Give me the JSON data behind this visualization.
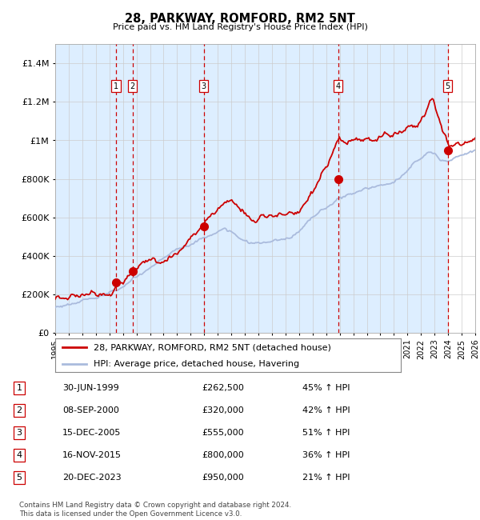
{
  "title": "28, PARKWAY, ROMFORD, RM2 5NT",
  "subtitle": "Price paid vs. HM Land Registry's House Price Index (HPI)",
  "ylim": [
    0,
    1500000
  ],
  "yticks": [
    0,
    200000,
    400000,
    600000,
    800000,
    1000000,
    1200000,
    1400000
  ],
  "ytick_labels": [
    "£0",
    "£200K",
    "£400K",
    "£600K",
    "£800K",
    "£1M",
    "£1.2M",
    "£1.4M"
  ],
  "x_start_year": 1995,
  "x_end_year": 2026,
  "sale_color": "#cc0000",
  "hpi_color": "#aabbdd",
  "vline_color": "#cc0000",
  "bg_shade_color": "#ddeeff",
  "sales": [
    {
      "label": "1",
      "date_num": 1999.5,
      "price": 262500
    },
    {
      "label": "2",
      "date_num": 2000.7,
      "price": 320000
    },
    {
      "label": "3",
      "date_num": 2005.96,
      "price": 555000
    },
    {
      "label": "4",
      "date_num": 2015.88,
      "price": 800000
    },
    {
      "label": "5",
      "date_num": 2023.97,
      "price": 950000
    }
  ],
  "legend_line1": "28, PARKWAY, ROMFORD, RM2 5NT (detached house)",
  "legend_line2": "HPI: Average price, detached house, Havering",
  "footnote": "Contains HM Land Registry data © Crown copyright and database right 2024.\nThis data is licensed under the Open Government Licence v3.0.",
  "table_rows": [
    [
      "1",
      "30-JUN-1999",
      "£262,500",
      "45% ↑ HPI"
    ],
    [
      "2",
      "08-SEP-2000",
      "£320,000",
      "42% ↑ HPI"
    ],
    [
      "3",
      "15-DEC-2005",
      "£555,000",
      "51% ↑ HPI"
    ],
    [
      "4",
      "16-NOV-2015",
      "£800,000",
      "36% ↑ HPI"
    ],
    [
      "5",
      "20-DEC-2023",
      "£950,000",
      "21% ↑ HPI"
    ]
  ]
}
